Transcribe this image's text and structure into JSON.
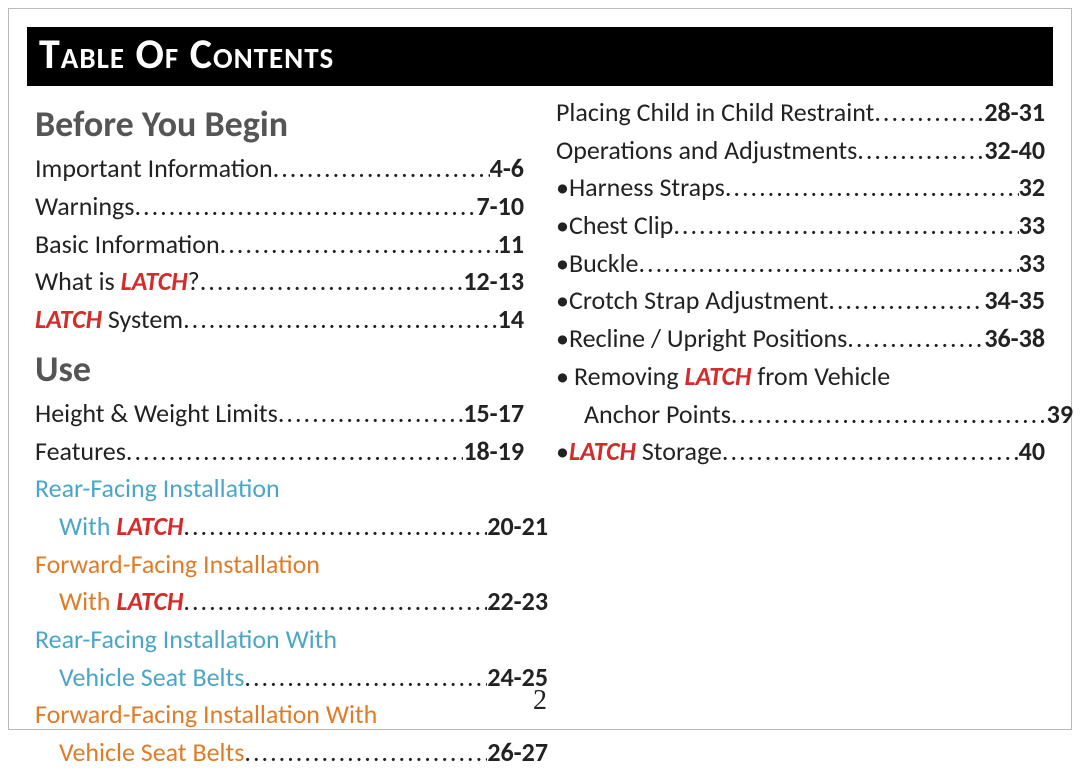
{
  "title": "Table Of Contents",
  "page_number": "2",
  "dots": "..........................................................................",
  "sections": {
    "before_you_begin": "Before You Begin",
    "use": "Use"
  },
  "left": {
    "important_info": {
      "label": "Important  Information",
      "page": "4-6"
    },
    "warnings": {
      "label": "Warnings",
      "page": "7-10"
    },
    "basic_info": {
      "label": "Basic  Information",
      "page": "11"
    },
    "what_is_latch": {
      "pre": "What is ",
      "latch": "LATCH",
      "post": "?",
      "page": "12-13"
    },
    "latch_system": {
      "latch": "LATCH",
      "post": " System",
      "page": "14"
    },
    "height_weight": {
      "label": "Height & Weight Limits",
      "page": "15-17"
    },
    "features": {
      "label": "Features",
      "page": "18-19"
    },
    "rear_latch_1": "Rear-Facing Installation",
    "rear_latch_2": {
      "pre": "With ",
      "latch": "LATCH",
      "page": "20-21"
    },
    "fwd_latch_1": "Forward-Facing Installation",
    "fwd_latch_2": {
      "pre": "With ",
      "latch": "LATCH",
      "page": "22-23"
    },
    "rear_belt_1": "Rear-Facing Installation With",
    "rear_belt_2": {
      "label": "Vehicle Seat Belts",
      "page": "24-25"
    },
    "fwd_belt_1": "Forward-Facing Installation With",
    "fwd_belt_2": {
      "label": "Vehicle Seat Belts",
      "page": "26-27"
    }
  },
  "right": {
    "placing": {
      "label": "Placing Child in Child Restraint",
      "page": "28-31"
    },
    "ops": {
      "label": "Operations and Adjustments",
      "page": "32-40"
    },
    "harness": {
      "label": "Harness Straps",
      "page": "32"
    },
    "chest": {
      "label": "Chest Clip",
      "page": "33"
    },
    "buckle": {
      "label": "Buckle",
      "page": "33"
    },
    "crotch": {
      "label": "Crotch Strap Adjustment",
      "page": "34-35"
    },
    "recline": {
      "label": "Recline / Upright Positions",
      "page": "36-38"
    },
    "removing_1": {
      "pre": "Removing ",
      "latch": "LATCH",
      "post": " from Vehicle"
    },
    "removing_2": {
      "label": "Anchor Points",
      "page": "39"
    },
    "latch_storage": {
      "latch": "LATCH",
      "post": " Storage",
      "page": "40"
    }
  }
}
